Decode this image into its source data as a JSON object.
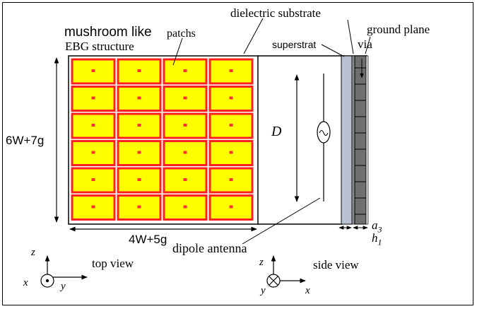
{
  "labels": {
    "title_line1": "mushroom like",
    "title_line2": "EBG structure",
    "patches": "patchs",
    "dielectric_substrate": "dielectric substrate",
    "ground_plane": "ground plane",
    "superstrat": "superstrat",
    "via": "via",
    "height_dim": "6W+7g",
    "width_dim": "4W+5g",
    "distance": "D",
    "dipole_antenna": "dipole antenna",
    "a3": "a",
    "a3_sub": "3",
    "h1": "h",
    "h1_sub": "1",
    "top_view": "top view",
    "side_view": "side view"
  },
  "axes_top": {
    "z": "z",
    "x": "x",
    "y": "y"
  },
  "axes_side": {
    "z": "z",
    "x": "x",
    "y": "y"
  },
  "grid": {
    "rows": 6,
    "cols": 4
  },
  "colors": {
    "patch_fill": "#ffff00",
    "patch_border": "#ff2020",
    "via": "#ff3030",
    "superstrate": "#b9c2d3",
    "substrate": "#6f6f6f",
    "ground": "#d8d8d8"
  }
}
